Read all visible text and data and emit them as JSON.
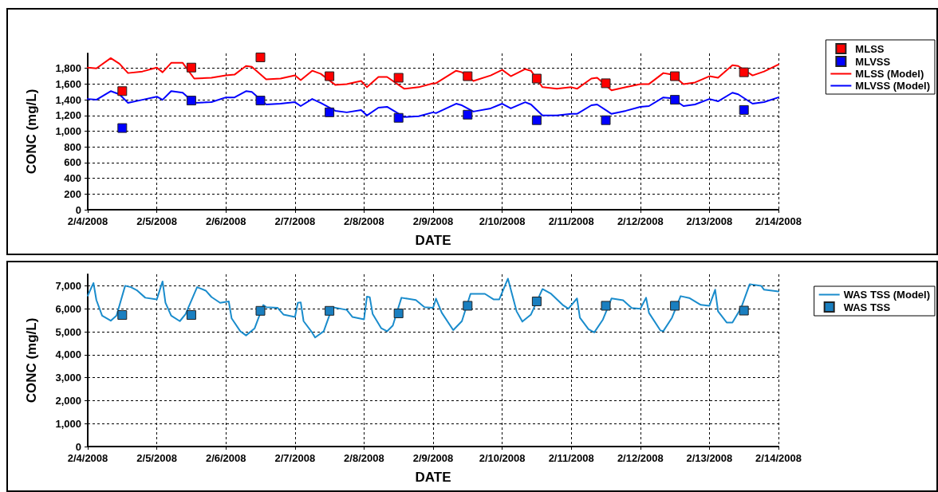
{
  "chart_data": [
    {
      "type": "line",
      "xlabel": "DATE",
      "ylabel": "CONC (mg/L)",
      "grid": true,
      "legend": "right",
      "xlim": [
        "2008-02-04",
        "2008-02-14"
      ],
      "xticks": [
        {
          "value": "2008-02-04",
          "label": "2/4/2008"
        },
        {
          "value": "2008-02-05",
          "label": "2/5/2008"
        },
        {
          "value": "2008-02-06",
          "label": "2/6/2008"
        },
        {
          "value": "2008-02-07",
          "label": "2/7/2008"
        },
        {
          "value": "2008-02-08",
          "label": "2/8/2008"
        },
        {
          "value": "2008-02-09",
          "label": "2/9/2008"
        },
        {
          "value": "2008-02-10",
          "label": "2/10/2008"
        },
        {
          "value": "2008-02-11",
          "label": "2/11/2008"
        },
        {
          "value": "2008-02-12",
          "label": "2/12/2008"
        },
        {
          "value": "2008-02-13",
          "label": "2/13/2008"
        },
        {
          "value": "2008-02-14",
          "label": "2/14/2008"
        }
      ],
      "ylim": [
        0,
        1990
      ],
      "yticks": [
        0,
        200,
        400,
        600,
        800,
        {
          "value": 1000,
          "label": "1,000"
        },
        {
          "value": 1200,
          "label": "1,200"
        },
        {
          "value": 1400,
          "label": "1,400"
        },
        {
          "value": 1600,
          "label": "1,600"
        },
        {
          "value": 1800,
          "label": "1,800"
        }
      ],
      "x": [
        "2008-02-04T00:00",
        "2008-02-04T03:00",
        "2008-02-04T08:00",
        "2008-02-04T11:00",
        "2008-02-04T14:00",
        "2008-02-04T19:00",
        "2008-02-05T00:00",
        "2008-02-05T02:00",
        "2008-02-05T05:00",
        "2008-02-05T09:00",
        "2008-02-05T13:00",
        "2008-02-05T19:00",
        "2008-02-06T00:00",
        "2008-02-06T03:00",
        "2008-02-06T07:00",
        "2008-02-06T09:00",
        "2008-02-06T14:00",
        "2008-02-06T19:00",
        "2008-02-07T00:00",
        "2008-02-07T02:00",
        "2008-02-07T06:00",
        "2008-02-07T09:00",
        "2008-02-07T14:00",
        "2008-02-07T18:00",
        "2008-02-07T23:00",
        "2008-02-08T01:00",
        "2008-02-08T05:00",
        "2008-02-08T08:00",
        "2008-02-08T14:00",
        "2008-02-08T19:00",
        "2008-02-09T00:00",
        "2008-02-09T01:00",
        "2008-02-09T08:00",
        "2008-02-09T10:00",
        "2008-02-09T14:00",
        "2008-02-09T20:00",
        "2008-02-10T00:00",
        "2008-02-10T03:00",
        "2008-02-10T08:00",
        "2008-02-10T10:00",
        "2008-02-10T14:00",
        "2008-02-10T19:00",
        "2008-02-11T00:00",
        "2008-02-11T02:00",
        "2008-02-11T07:00",
        "2008-02-11T09:00",
        "2008-02-11T14:00",
        "2008-02-11T19:00",
        "2008-02-12T00:00",
        "2008-02-12T03:00",
        "2008-02-12T08:00",
        "2008-02-12T11:00",
        "2008-02-12T15:00",
        "2008-02-12T19:00",
        "2008-02-13T00:00",
        "2008-02-13T03:00",
        "2008-02-13T08:00",
        "2008-02-13T10:00",
        "2008-02-13T15:00",
        "2008-02-13T19:00",
        "2008-02-14T00:00"
      ],
      "series": [
        {
          "name": "MLSS",
          "type": "scatter",
          "marker": "square",
          "color": "#ff0000",
          "x": [
            "2008-02-04T12:00",
            "2008-02-05T12:00",
            "2008-02-06T12:00",
            "2008-02-07T12:00",
            "2008-02-08T12:00",
            "2008-02-09T12:00",
            "2008-02-10T12:00",
            "2008-02-11T12:00",
            "2008-02-12T12:00",
            "2008-02-13T12:00"
          ],
          "values": [
            1510,
            1810,
            1940,
            1700,
            1680,
            1700,
            1670,
            1610,
            1700,
            1750
          ]
        },
        {
          "name": "MLVSS",
          "type": "scatter",
          "marker": "square",
          "color": "#0000ff",
          "x": [
            "2008-02-04T12:00",
            "2008-02-05T12:00",
            "2008-02-06T12:00",
            "2008-02-07T12:00",
            "2008-02-08T12:00",
            "2008-02-09T12:00",
            "2008-02-10T12:00",
            "2008-02-11T12:00",
            "2008-02-12T12:00",
            "2008-02-13T12:00"
          ],
          "values": [
            1040,
            1390,
            1390,
            1240,
            1170,
            1210,
            1140,
            1140,
            1400,
            1270
          ]
        },
        {
          "name": "MLSS (Model)",
          "marker": "none",
          "color": "#ff0000",
          "values": [
            1810,
            1800,
            1930,
            1860,
            1740,
            1760,
            1810,
            1750,
            1870,
            1870,
            1670,
            1680,
            1710,
            1720,
            1830,
            1820,
            1660,
            1670,
            1710,
            1650,
            1770,
            1730,
            1590,
            1600,
            1640,
            1560,
            1690,
            1690,
            1540,
            1560,
            1610,
            1610,
            1770,
            1750,
            1640,
            1710,
            1780,
            1700,
            1790,
            1770,
            1560,
            1540,
            1560,
            1540,
            1670,
            1680,
            1520,
            1560,
            1600,
            1600,
            1740,
            1720,
            1600,
            1620,
            1700,
            1680,
            1840,
            1830,
            1710,
            1760,
            1850
          ]
        },
        {
          "name": "MLVSS (Model)",
          "marker": "none",
          "color": "#0000ff",
          "values": [
            1410,
            1400,
            1510,
            1470,
            1360,
            1400,
            1440,
            1400,
            1510,
            1490,
            1360,
            1370,
            1430,
            1430,
            1510,
            1500,
            1340,
            1350,
            1370,
            1320,
            1410,
            1360,
            1260,
            1240,
            1270,
            1200,
            1300,
            1310,
            1180,
            1190,
            1240,
            1230,
            1350,
            1330,
            1250,
            1290,
            1350,
            1290,
            1370,
            1340,
            1200,
            1200,
            1220,
            1220,
            1330,
            1340,
            1220,
            1260,
            1310,
            1320,
            1430,
            1420,
            1320,
            1340,
            1410,
            1380,
            1490,
            1470,
            1350,
            1370,
            1430
          ]
        }
      ]
    },
    {
      "type": "line",
      "xlabel": "DATE",
      "ylabel": "CONC (mg/L)",
      "grid": true,
      "legend": "right",
      "xlim": [
        "2008-02-04",
        "2008-02-14"
      ],
      "xticks": [
        {
          "value": "2008-02-04",
          "label": "2/4/2008"
        },
        {
          "value": "2008-02-05",
          "label": "2/5/2008"
        },
        {
          "value": "2008-02-06",
          "label": "2/6/2008"
        },
        {
          "value": "2008-02-07",
          "label": "2/7/2008"
        },
        {
          "value": "2008-02-08",
          "label": "2/8/2008"
        },
        {
          "value": "2008-02-09",
          "label": "2/9/2008"
        },
        {
          "value": "2008-02-10",
          "label": "2/10/2008"
        },
        {
          "value": "2008-02-11",
          "label": "2/11/2008"
        },
        {
          "value": "2008-02-12",
          "label": "2/12/2008"
        },
        {
          "value": "2008-02-13",
          "label": "2/13/2008"
        },
        {
          "value": "2008-02-14",
          "label": "2/14/2008"
        }
      ],
      "ylim": [
        0,
        7500
      ],
      "yticks": [
        0,
        {
          "value": 1000,
          "label": "1,000"
        },
        {
          "value": 2000,
          "label": "2,000"
        },
        {
          "value": 3000,
          "label": "3,000"
        },
        {
          "value": 4000,
          "label": "4,000"
        },
        {
          "value": 5000,
          "label": "5,000"
        },
        {
          "value": 6000,
          "label": "6,000"
        },
        {
          "value": 7000,
          "label": "7,000"
        }
      ],
      "series": [
        {
          "name": "WAS TSS (Model)",
          "marker": "none",
          "color": "#1a8ccc",
          "x": [
            "2008-02-04T00:00",
            "2008-02-04T02:00",
            "2008-02-04T03:00",
            "2008-02-04T05:00",
            "2008-02-04T08:00",
            "2008-02-04T10:00",
            "2008-02-04T13:00",
            "2008-02-04T15:00",
            "2008-02-04T17:00",
            "2008-02-04T20:00",
            "2008-02-05T00:00",
            "2008-02-05T02:00",
            "2008-02-05T03:00",
            "2008-02-05T05:00",
            "2008-02-05T08:00",
            "2008-02-05T10:00",
            "2008-02-05T14:00",
            "2008-02-05T17:00",
            "2008-02-05T19:00",
            "2008-02-05T22:00",
            "2008-02-06T01:00",
            "2008-02-06T02:00",
            "2008-02-06T05:00",
            "2008-02-06T07:00",
            "2008-02-06T10:00",
            "2008-02-06T13:00",
            "2008-02-06T14:00",
            "2008-02-06T18:00",
            "2008-02-06T20:00",
            "2008-02-07T00:00",
            "2008-02-07T01:00",
            "2008-02-07T02:00",
            "2008-02-07T03:00",
            "2008-02-07T06:00",
            "2008-02-07T07:00",
            "2008-02-07T10:00",
            "2008-02-07T13:00",
            "2008-02-07T18:00",
            "2008-02-07T20:00",
            "2008-02-08T00:00",
            "2008-02-08T01:00",
            "2008-02-08T02:00",
            "2008-02-08T03:00",
            "2008-02-08T06:00",
            "2008-02-08T08:00",
            "2008-02-08T10:00",
            "2008-02-08T13:00",
            "2008-02-08T15:00",
            "2008-02-08T18:00",
            "2008-02-08T21:00",
            "2008-02-09T00:00",
            "2008-02-09T01:00",
            "2008-02-09T03:00",
            "2008-02-09T07:00",
            "2008-02-09T10:00",
            "2008-02-09T13:00",
            "2008-02-09T18:00",
            "2008-02-09T21:00",
            "2008-02-09T23:00",
            "2008-02-10T02:00",
            "2008-02-10T05:00",
            "2008-02-10T07:00",
            "2008-02-10T10:00",
            "2008-02-10T14:00",
            "2008-02-10T17:00",
            "2008-02-10T21:00",
            "2008-02-10T23:00",
            "2008-02-11T02:00",
            "2008-02-11T03:00",
            "2008-02-11T06:00",
            "2008-02-11T08:00",
            "2008-02-11T11:00",
            "2008-02-11T14:00",
            "2008-02-11T18:00",
            "2008-02-11T21:00",
            "2008-02-12T00:00",
            "2008-02-12T02:00",
            "2008-02-12T03:00",
            "2008-02-12T07:00",
            "2008-02-12T08:00",
            "2008-02-12T11:00",
            "2008-02-12T14:00",
            "2008-02-12T17:00",
            "2008-02-12T21:00",
            "2008-02-13T00:00",
            "2008-02-13T02:00",
            "2008-02-13T03:00",
            "2008-02-13T06:00",
            "2008-02-13T08:00",
            "2008-02-13T11:00",
            "2008-02-13T14:00",
            "2008-02-13T18:00",
            "2008-02-13T19:00",
            "2008-02-14T00:00"
          ],
          "values": [
            6570,
            7120,
            6380,
            5700,
            5480,
            5700,
            7000,
            6940,
            6810,
            6480,
            6410,
            7190,
            6260,
            5700,
            5460,
            5770,
            6940,
            6790,
            6510,
            6260,
            6320,
            5580,
            5020,
            4840,
            5150,
            6160,
            6070,
            6040,
            5750,
            5640,
            6260,
            6280,
            5460,
            4960,
            4750,
            5020,
            6070,
            5950,
            5640,
            5540,
            6530,
            6500,
            5770,
            5150,
            5020,
            5270,
            6480,
            6440,
            6380,
            6070,
            6040,
            6440,
            5830,
            5070,
            5460,
            6650,
            6650,
            6410,
            6410,
            7310,
            5890,
            5440,
            5750,
            6860,
            6650,
            6170,
            6000,
            6450,
            5610,
            5110,
            4970,
            5530,
            6450,
            6370,
            6030,
            6000,
            6480,
            5820,
            5050,
            5030,
            5610,
            6550,
            6470,
            6170,
            6130,
            6830,
            5890,
            5400,
            5400,
            6030,
            7070,
            7000,
            6830,
            6750
          ]
        },
        {
          "name": "WAS TSS",
          "type": "scatter",
          "marker": "square",
          "color": "#1a7fc0",
          "x": [
            "2008-02-04T12:00",
            "2008-02-05T12:00",
            "2008-02-06T12:00",
            "2008-02-07T12:00",
            "2008-02-08T12:00",
            "2008-02-09T12:00",
            "2008-02-10T12:00",
            "2008-02-11T12:00",
            "2008-02-12T12:00",
            "2008-02-13T12:00"
          ],
          "values": [
            5730,
            5730,
            5910,
            5910,
            5800,
            6130,
            6320,
            6130,
            6130,
            5920
          ]
        }
      ]
    }
  ]
}
